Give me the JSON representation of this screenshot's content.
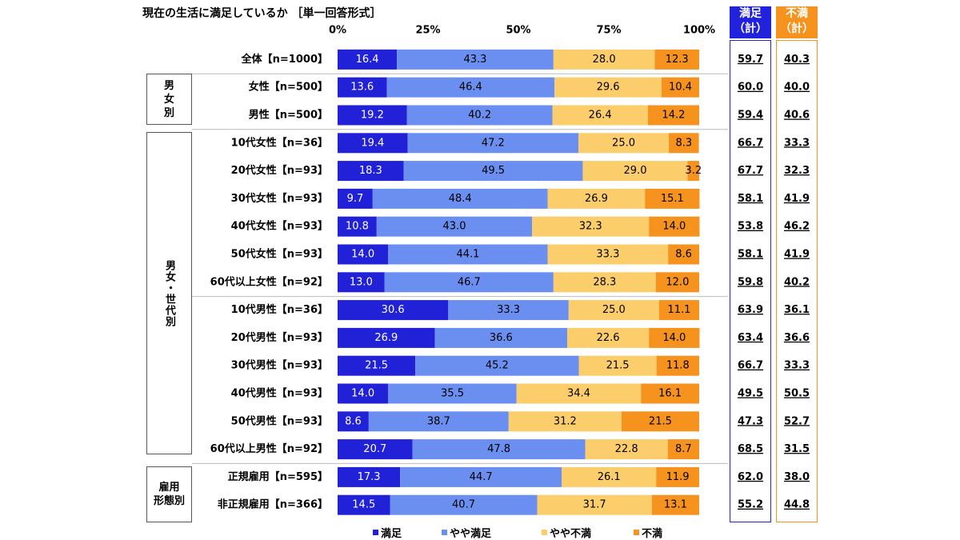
{
  "title": "現在の生活に満足しているか ［単一回答形式］",
  "headers": {
    "satisfied_total": [
      "満足",
      "（計）"
    ],
    "dissatisfied_total": [
      "不満",
      "（計）"
    ]
  },
  "groups": {
    "gender": [
      "男",
      "女",
      "別"
    ],
    "gender_age": "男女・世代別",
    "employment": [
      "雇用",
      "形態別"
    ]
  },
  "colors": {
    "satisfied": "#2121d8",
    "somewhat_satisfied": "#6b8ff0",
    "somewhat_dissatisfied": "#fccd6b",
    "dissatisfied": "#f6921e"
  },
  "chart_data": {
    "type": "bar",
    "orientation": "horizontal",
    "stacked": true,
    "title": "現在の生活に満足しているか ［単一回答形式］",
    "xlim": [
      0,
      100
    ],
    "x_ticks": [
      "0%",
      "25%",
      "50%",
      "75%",
      "100%"
    ],
    "legend_position": "bottom",
    "categories": [
      "全体【n=1000】",
      "女性【n=500】",
      "男性【n=500】",
      "10代女性【n=36】",
      "20代女性【n=93】",
      "30代女性【n=93】",
      "40代女性【n=93】",
      "50代女性【n=93】",
      "60代以上女性【n=92】",
      "10代男性【n=36】",
      "20代男性【n=93】",
      "30代男性【n=93】",
      "40代男性【n=93】",
      "50代男性【n=93】",
      "60代以上男性【n=92】",
      "正規雇用【n=595】",
      "非正規雇用【n=366】"
    ],
    "series": [
      {
        "name": "満足",
        "values": [
          16.4,
          13.6,
          19.2,
          19.4,
          18.3,
          9.7,
          10.8,
          14.0,
          13.0,
          30.6,
          26.9,
          21.5,
          14.0,
          8.6,
          20.7,
          17.3,
          14.5
        ]
      },
      {
        "name": "やや満足",
        "values": [
          43.3,
          46.4,
          40.2,
          47.2,
          49.5,
          48.4,
          43.0,
          44.1,
          46.7,
          33.3,
          36.6,
          45.2,
          35.5,
          38.7,
          47.8,
          44.7,
          40.7
        ]
      },
      {
        "name": "やや不満",
        "values": [
          28.0,
          29.6,
          26.4,
          25.0,
          29.0,
          26.9,
          32.3,
          33.3,
          28.3,
          25.0,
          22.6,
          21.5,
          34.4,
          31.2,
          22.8,
          26.1,
          31.7
        ]
      },
      {
        "name": "不満",
        "values": [
          12.3,
          10.4,
          14.2,
          8.3,
          3.2,
          15.1,
          14.0,
          8.6,
          12.0,
          11.1,
          14.0,
          11.8,
          16.1,
          21.5,
          8.7,
          11.9,
          13.1
        ]
      }
    ],
    "satisfied_total": [
      "59.7",
      "60.0",
      "59.4",
      "66.7",
      "67.7",
      "58.1",
      "53.8",
      "58.1",
      "59.8",
      "63.9",
      "63.4",
      "66.7",
      "49.5",
      "47.3",
      "68.5",
      "62.0",
      "55.2"
    ],
    "dissatisfied_total": [
      "40.3",
      "40.0",
      "40.6",
      "33.3",
      "32.3",
      "41.9",
      "46.2",
      "41.9",
      "40.2",
      "36.1",
      "36.6",
      "33.3",
      "50.5",
      "52.7",
      "31.5",
      "38.0",
      "44.8"
    ]
  }
}
